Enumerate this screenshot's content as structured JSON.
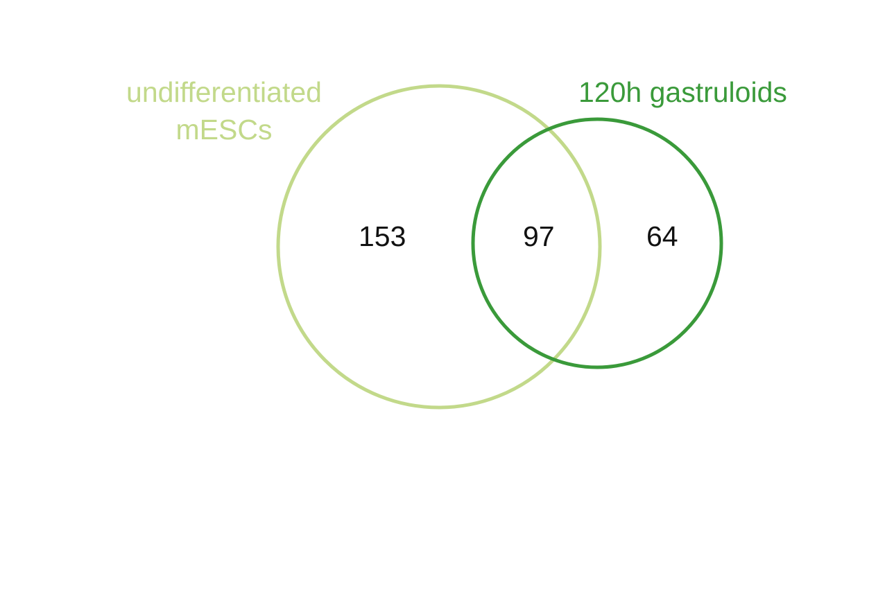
{
  "sets": [
    {
      "id": "a",
      "label_lines": [
        "undifferentiated",
        "mESCs"
      ],
      "color": "#c2d98a",
      "only_count": "153"
    },
    {
      "id": "b",
      "label_lines": [
        "120h gastruloids"
      ],
      "color": "#3a9a3a",
      "only_count": "64"
    }
  ],
  "intersection_count": "97",
  "colors": {
    "background": "#ffffff",
    "count_text": "#111111"
  }
}
